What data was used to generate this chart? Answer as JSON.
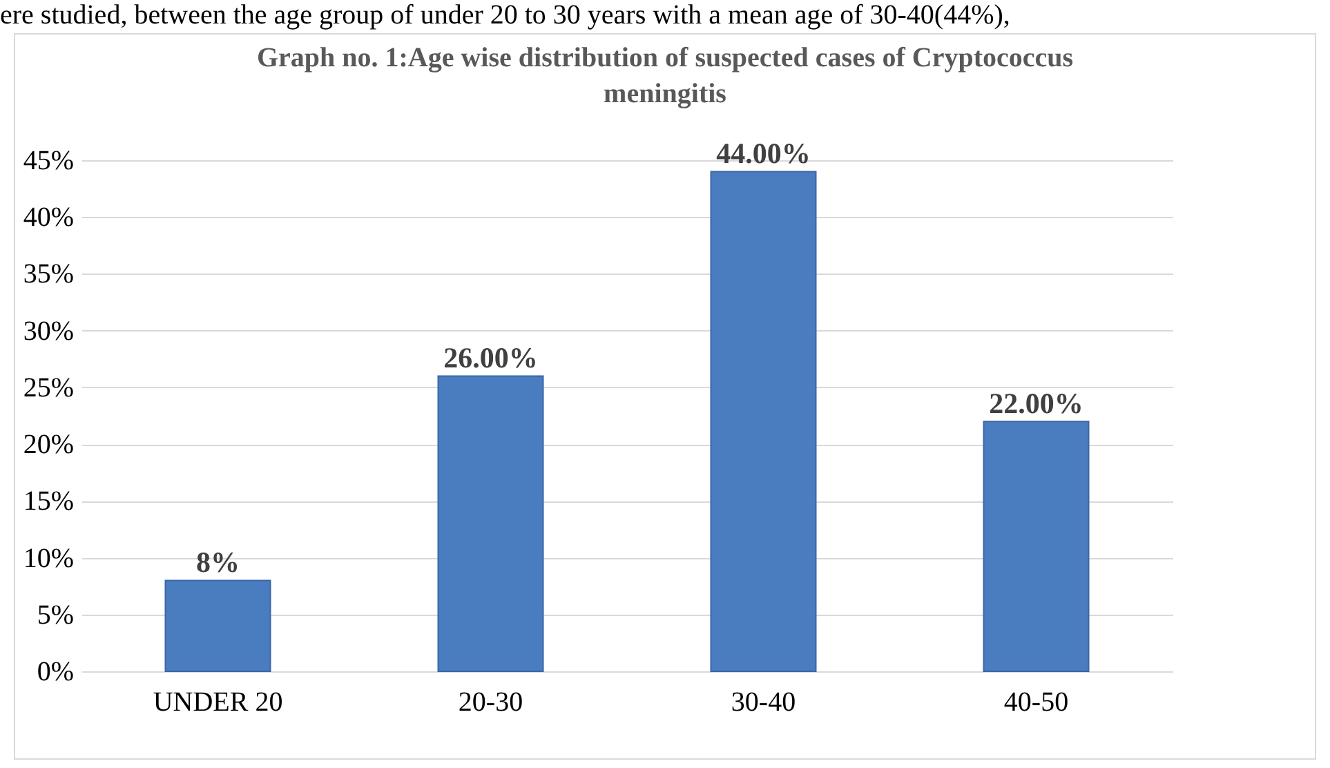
{
  "chart_data": {
    "type": "bar",
    "title": "Graph no. 1:Age wise distribution of suspected cases of Cryptococcus meningitis",
    "annotations": [
      "ere studied, between the age group of under 20 to 30 years with a mean age of 30-40(44%),"
    ],
    "categories": [
      "UNDER 20",
      "20-30",
      "30-40",
      "40-50"
    ],
    "values": [
      8,
      26,
      44,
      22
    ],
    "value_labels": [
      "8%",
      "26.00%",
      "44.00%",
      "22.00%"
    ],
    "color": "#4a7cc0",
    "ylim": [
      0,
      45
    ],
    "yticks": [
      {
        "value": 0,
        "label": "0%"
      },
      {
        "value": 5,
        "label": "5%"
      },
      {
        "value": 10,
        "label": "10%"
      },
      {
        "value": 15,
        "label": "15%"
      },
      {
        "value": 20,
        "label": "20%"
      },
      {
        "value": 25,
        "label": "25%"
      },
      {
        "value": 30,
        "label": "30%"
      },
      {
        "value": 35,
        "label": "35%"
      },
      {
        "value": 40,
        "label": "40%"
      },
      {
        "value": 45,
        "label": "45%"
      }
    ],
    "grid": true
  }
}
